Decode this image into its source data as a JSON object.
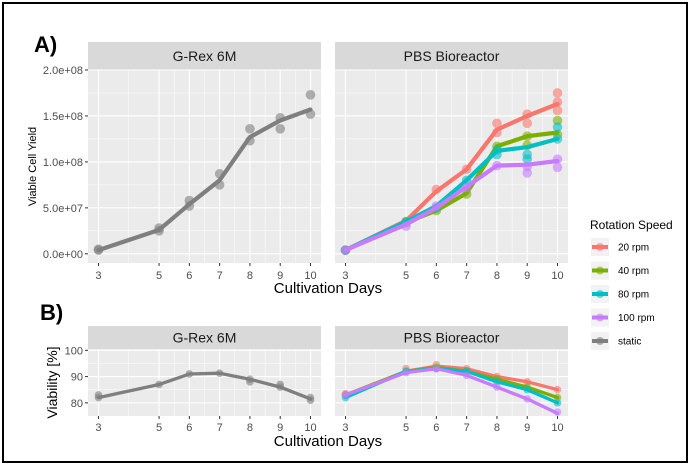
{
  "panel_labels": {
    "a": "A)",
    "b": "B)"
  },
  "colors": {
    "20 rpm": "#F8766D",
    "40 rpm": "#7CAE00",
    "80 rpm": "#00BFC4",
    "100 rpm": "#C77CFF",
    "static": "#7F7F7F",
    "panel_bg": "#EBEBEB",
    "strip_bg": "#D9D9D9",
    "grid": "#FFFFFF"
  },
  "legend": {
    "title": "Rotation Speed",
    "items": [
      "20 rpm",
      "40 rpm",
      "80 rpm",
      "100 rpm",
      "static"
    ]
  },
  "chart_data": [
    {
      "type": "line",
      "id": "A",
      "facets": [
        "G-Rex 6M",
        "PBS Bioreactor"
      ],
      "xlabel": "Cultivation Days",
      "ylabel": "Viable Cell Yield",
      "x": [
        3,
        5,
        6,
        7,
        8,
        9,
        10
      ],
      "xticklabels": [
        "3",
        "5",
        "6",
        "7",
        "8",
        "9",
        "10"
      ],
      "ylim": [
        -10000000,
        200000000
      ],
      "yticks": [
        0,
        50000000,
        100000000,
        150000000,
        200000000
      ],
      "yticklabels": [
        "0.0e+00",
        "5.0e+07",
        "1.0e+08",
        "1.5e+08",
        "2.0e+08"
      ],
      "series": [
        {
          "name": "static",
          "facet": "G-Rex 6M",
          "values": [
            4000000,
            26000000,
            54000000,
            80000000,
            127000000,
            145000000,
            157000000
          ],
          "points": [
            [
              3,
              4000000
            ],
            [
              3,
              5000000
            ],
            [
              5,
              25000000
            ],
            [
              5,
              28000000
            ],
            [
              6,
              52000000
            ],
            [
              6,
              58000000
            ],
            [
              7,
              75000000
            ],
            [
              7,
              87000000
            ],
            [
              8,
              123000000
            ],
            [
              8,
              136000000
            ],
            [
              9,
              136000000
            ],
            [
              9,
              148000000
            ],
            [
              10,
              152000000
            ],
            [
              10,
              173000000
            ]
          ]
        },
        {
          "name": "20 rpm",
          "facet": "PBS Bioreactor",
          "values": [
            4000000,
            36000000,
            68000000,
            92000000,
            135000000,
            150000000,
            163000000
          ],
          "points": [
            [
              3,
              4000000
            ],
            [
              5,
              35000000
            ],
            [
              6,
              70000000
            ],
            [
              7,
              92000000
            ],
            [
              8,
              132000000
            ],
            [
              8,
              142000000
            ],
            [
              9,
              142000000
            ],
            [
              9,
              152000000
            ],
            [
              10,
              156000000
            ],
            [
              10,
              165000000
            ],
            [
              10,
              175000000
            ]
          ]
        },
        {
          "name": "40 rpm",
          "facet": "PBS Bioreactor",
          "values": [
            4000000,
            34000000,
            47000000,
            66000000,
            117000000,
            128000000,
            132000000
          ],
          "points": [
            [
              3,
              4000000
            ],
            [
              5,
              34000000
            ],
            [
              6,
              47000000
            ],
            [
              7,
              65000000
            ],
            [
              8,
              117000000
            ],
            [
              9,
              118000000
            ],
            [
              9,
              128000000
            ],
            [
              10,
              130000000
            ],
            [
              10,
              145000000
            ]
          ]
        },
        {
          "name": "80 rpm",
          "facet": "PBS Bioreactor",
          "values": [
            4000000,
            35000000,
            52000000,
            80000000,
            112000000,
            116000000,
            125000000
          ],
          "points": [
            [
              3,
              4000000
            ],
            [
              5,
              35000000
            ],
            [
              6,
              50000000
            ],
            [
              7,
              80000000
            ],
            [
              8,
              108000000
            ],
            [
              8,
              113000000
            ],
            [
              9,
              103000000
            ],
            [
              9,
              108000000
            ],
            [
              10,
              125000000
            ],
            [
              10,
              138000000
            ]
          ]
        },
        {
          "name": "100 rpm",
          "facet": "PBS Bioreactor",
          "values": [
            4000000,
            32000000,
            50000000,
            73000000,
            96000000,
            97000000,
            101000000
          ],
          "points": [
            [
              3,
              4000000
            ],
            [
              5,
              30000000
            ],
            [
              6,
              52000000
            ],
            [
              7,
              72000000
            ],
            [
              8,
              96000000
            ],
            [
              9,
              88000000
            ],
            [
              9,
              95000000
            ],
            [
              10,
              94000000
            ],
            [
              10,
              103000000
            ]
          ]
        }
      ]
    },
    {
      "type": "line",
      "id": "B",
      "facets": [
        "G-Rex 6M",
        "PBS Bioreactor"
      ],
      "xlabel": "Cultivation Days",
      "ylabel": "Viability [%]",
      "x": [
        3,
        5,
        6,
        7,
        8,
        9,
        10
      ],
      "xticklabels": [
        "3",
        "5",
        "6",
        "7",
        "8",
        "9",
        "10"
      ],
      "ylim": [
        75,
        100.5
      ],
      "yticks": [
        80,
        90,
        100
      ],
      "yticklabels": [
        "80",
        "90",
        "100"
      ],
      "series": [
        {
          "name": "static",
          "facet": "G-Rex 6M",
          "values": [
            82,
            87,
            91,
            91.3,
            89,
            86,
            81.5
          ],
          "points": [
            [
              3,
              82
            ],
            [
              3,
              83
            ],
            [
              5,
              87
            ],
            [
              6,
              91
            ],
            [
              7,
              91.3
            ],
            [
              8,
              88
            ],
            [
              8,
              89
            ],
            [
              9,
              86
            ],
            [
              9,
              87
            ],
            [
              10,
              81
            ],
            [
              10,
              82
            ]
          ]
        },
        {
          "name": "20 rpm",
          "facet": "PBS Bioreactor",
          "values": [
            83,
            92,
            94,
            93,
            90,
            88,
            85
          ],
          "points": [
            [
              3,
              83.5
            ],
            [
              5,
              93
            ],
            [
              6,
              94.5
            ],
            [
              7,
              93
            ],
            [
              8,
              90
            ],
            [
              9,
              88
            ],
            [
              10,
              85
            ]
          ]
        },
        {
          "name": "40 rpm",
          "facet": "PBS Bioreactor",
          "values": [
            83,
            92,
            93.5,
            92,
            89,
            86,
            82
          ],
          "points": [
            [
              3,
              83
            ],
            [
              5,
              92
            ],
            [
              6,
              93.5
            ],
            [
              7,
              92
            ],
            [
              8,
              89
            ],
            [
              9,
              86
            ],
            [
              10,
              82
            ]
          ]
        },
        {
          "name": "80 rpm",
          "facet": "PBS Bioreactor",
          "values": [
            82,
            92,
            93,
            92,
            88,
            85,
            80
          ],
          "points": [
            [
              3,
              82
            ],
            [
              5,
              92
            ],
            [
              6,
              93
            ],
            [
              7,
              92
            ],
            [
              8,
              88
            ],
            [
              9,
              85
            ],
            [
              10,
              80
            ]
          ]
        },
        {
          "name": "100 rpm",
          "facet": "PBS Bioreactor",
          "values": [
            83,
            91.5,
            93,
            90.5,
            86,
            81.5,
            76
          ],
          "points": [
            [
              3,
              83
            ],
            [
              5,
              91.5
            ],
            [
              6,
              93
            ],
            [
              7,
              90.5
            ],
            [
              8,
              86
            ],
            [
              9,
              81.5
            ],
            [
              10,
              76.5
            ]
          ]
        }
      ]
    }
  ]
}
